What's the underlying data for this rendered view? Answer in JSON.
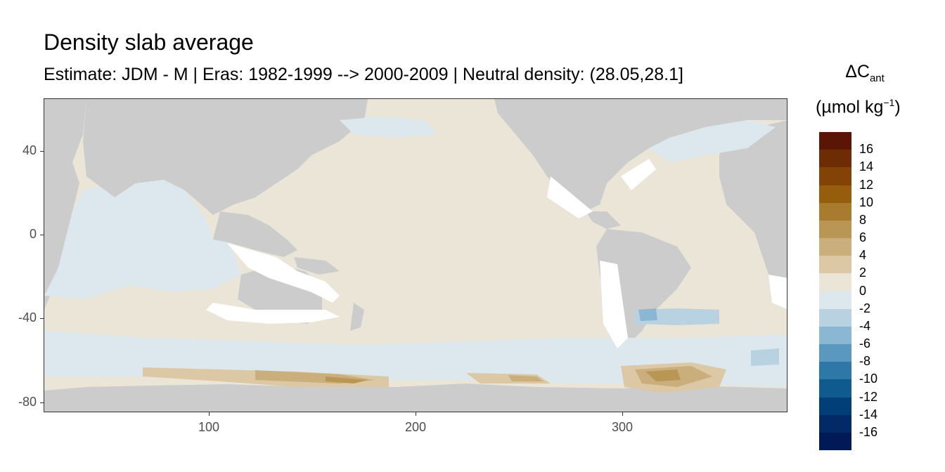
{
  "title": "Density slab average",
  "subtitle": "Estimate: JDM - M | Eras: 1982-1999 --> 2000-2009 | Neutral density: (28.05,28.1]",
  "map": {
    "x_ticks": [
      "100",
      "200",
      "300"
    ],
    "y_ticks": [
      "40",
      "0",
      "-40",
      "-80"
    ],
    "x_range": [
      22,
      382
    ],
    "y_range": [
      -85,
      65
    ],
    "land_color": "#cccccc",
    "no_data_color": "#ffffff"
  },
  "legend": {
    "title_main": "ΔC",
    "title_sub": "ant",
    "unit_prefix": "(µmol kg",
    "unit_sup": "−1",
    "unit_suffix": ")",
    "labels": [
      "16",
      "14",
      "12",
      "10",
      "8",
      "6",
      "4",
      "2",
      "0",
      "-2",
      "-4",
      "-6",
      "-8",
      "-10",
      "-12",
      "-14",
      "-16"
    ],
    "colors": [
      "#5a1505",
      "#6e2c04",
      "#834306",
      "#965d0d",
      "#a97b2f",
      "#b99653",
      "#caaf7c",
      "#dcc8a5",
      "#ebe5d8",
      "#dde8ee",
      "#b9d2e2",
      "#8ab8d2",
      "#5a98bf",
      "#2e78a8",
      "#0f5a8e",
      "#023f78",
      "#022a66",
      "#001a57"
    ]
  }
}
